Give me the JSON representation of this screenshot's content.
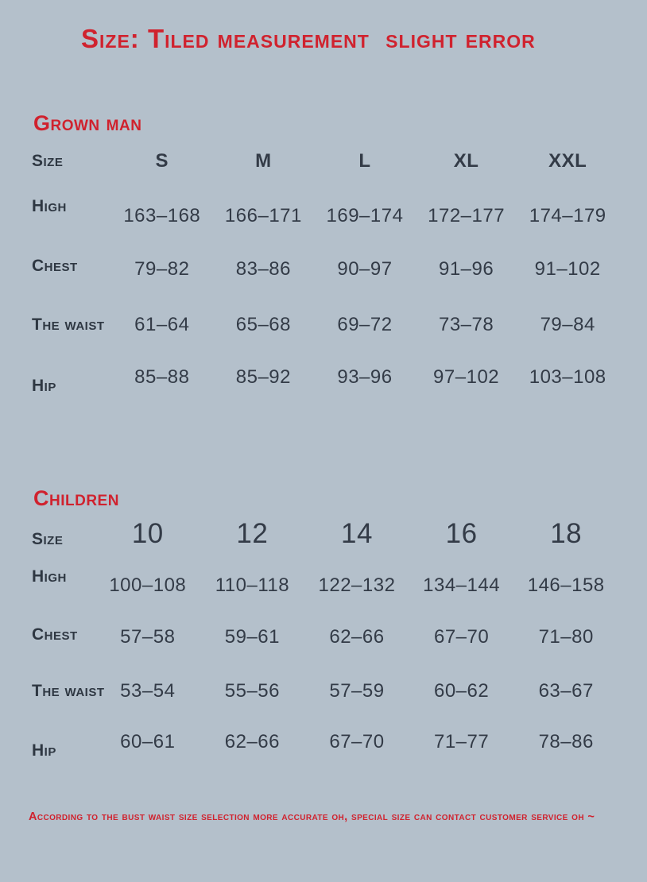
{
  "page": {
    "title": "Size: Tiled measurement  slight error",
    "footnote": "According to the bust waist size selection more accurate oh, special size can contact customer service oh ~",
    "colors": {
      "background": "#b4c0cb",
      "accent_red": "#d0222e",
      "table_text": "#333b47"
    }
  },
  "grown_man": {
    "heading": "Grown man",
    "size_label": "Size",
    "sizes": [
      "S",
      "M",
      "L",
      "XL",
      "XXL"
    ],
    "rows": [
      {
        "label": "High",
        "values": [
          "163–168",
          "166–171",
          "169–174",
          "172–177",
          "174–179"
        ]
      },
      {
        "label": "Chest",
        "values": [
          "79–82",
          "83–86",
          "90–97",
          "91–96",
          "91–102"
        ]
      },
      {
        "label": "The waist",
        "values": [
          "61–64",
          "65–68",
          "69–72",
          "73–78",
          "79–84"
        ]
      },
      {
        "label": "Hip",
        "values": [
          "85–88",
          "85–92",
          "93–96",
          "97–102",
          "103–108"
        ]
      }
    ]
  },
  "children": {
    "heading": "Children",
    "size_label": "Size",
    "sizes": [
      "10",
      "12",
      "14",
      "16",
      "18"
    ],
    "rows": [
      {
        "label": "High",
        "values": [
          "100–108",
          "110–118",
          "122–132",
          "134–144",
          "146–158"
        ]
      },
      {
        "label": "Chest",
        "values": [
          "57–58",
          "59–61",
          "62–66",
          "67–70",
          "71–80"
        ]
      },
      {
        "label": "The waist",
        "values": [
          "53–54",
          "55–56",
          "57–59",
          "60–62",
          "63–67"
        ]
      },
      {
        "label": "Hip",
        "values": [
          "60–61",
          "62–66",
          "67–70",
          "71–77",
          "78–86"
        ]
      }
    ]
  }
}
